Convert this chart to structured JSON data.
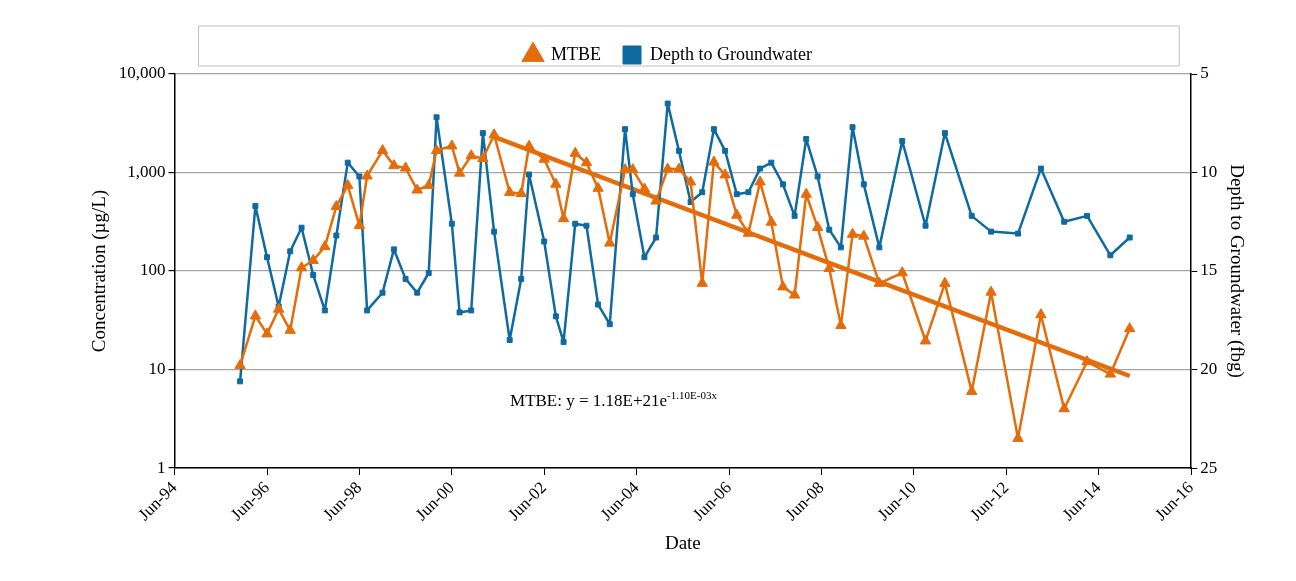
{
  "chart_data": {
    "type": "line",
    "xlabel": "Date",
    "ylabel": "Concentration (µg/L)",
    "y2label": "Depth to Groundwater (fbg)",
    "x": [
      "1995-11",
      "1996-03",
      "1996-06",
      "1996-09",
      "1996-12",
      "1997-03",
      "1997-06",
      "1997-09",
      "1997-12",
      "1998-03",
      "1998-06",
      "1998-08",
      "1998-12",
      "1999-03",
      "1999-06",
      "1999-09",
      "1999-12",
      "2000-02",
      "2000-06",
      "2000-08",
      "2000-11",
      "2001-02",
      "2001-05",
      "2001-09",
      "2001-12",
      "2002-02",
      "2002-06",
      "2002-09",
      "2002-11",
      "2003-02",
      "2003-05",
      "2003-08",
      "2003-11",
      "2004-03",
      "2004-05",
      "2004-08",
      "2004-11",
      "2005-02",
      "2005-05",
      "2005-08",
      "2005-11",
      "2006-02",
      "2006-05",
      "2006-08",
      "2006-11",
      "2007-02",
      "2007-05",
      "2007-08",
      "2007-11",
      "2008-02",
      "2008-05",
      "2008-08",
      "2008-11",
      "2009-02",
      "2009-05",
      "2009-09",
      "2010-03",
      "2010-09",
      "2011-02",
      "2011-09",
      "2012-02",
      "2012-09",
      "2013-03",
      "2013-09",
      "2014-03",
      "2014-09",
      "2015-02"
    ],
    "series": [
      {
        "name": "MTBE",
        "color": "#e46c0a",
        "marker": "triangle",
        "values": [
          11,
          35,
          23,
          41,
          25,
          108,
          128,
          177,
          453,
          740,
          289,
          922,
          1671,
          1175,
          1110,
          664,
          740,
          1671,
          1860,
          985,
          1480,
          1385,
          2415,
          628,
          612,
          1845,
          1365,
          760,
          340,
          1566,
          1256,
          692,
          192,
          1069,
          1069,
          681,
          513,
          1085,
          1085,
          802,
          75,
          1277,
          946,
          369,
          242,
          802,
          313,
          69,
          57,
          602,
          277,
          106,
          28,
          236,
          226,
          75,
          96,
          19.5,
          75,
          6,
          61,
          2,
          36,
          4,
          12,
          9,
          26
        ]
      },
      {
        "name": "Depth to Groundwater",
        "color": "#0e6aa0",
        "marker": "square",
        "axis": "y2",
        "values": [
          20.6,
          11.7,
          14.3,
          16.8,
          14.0,
          12.8,
          15.2,
          17.0,
          13.2,
          9.5,
          10.2,
          17.0,
          16.1,
          13.9,
          15.4,
          16.1,
          15.1,
          7.2,
          12.6,
          17.1,
          17.0,
          8.0,
          13.0,
          18.5,
          15.4,
          10.1,
          13.5,
          17.3,
          18.6,
          12.6,
          12.7,
          16.7,
          17.7,
          7.8,
          11.1,
          14.3,
          13.3,
          6.5,
          8.9,
          11.5,
          11.0,
          7.8,
          8.9,
          11.1,
          11.0,
          9.8,
          9.5,
          10.6,
          12.2,
          8.3,
          10.2,
          12.9,
          13.8,
          7.7,
          10.6,
          13.8,
          8.4,
          12.7,
          8.0,
          12.2,
          13.0,
          13.1,
          9.8,
          12.5,
          12.2,
          14.2,
          13.3
        ]
      },
      {
        "type": "line",
        "color": "#e46c0a",
        "marker": "none",
        "x": [
          "2001-05",
          "2015-02"
        ],
        "values": [
          2300,
          8.6
        ]
      }
    ],
    "xlim": [
      "1994-06",
      "2016-06"
    ],
    "xticks": [
      {
        "value": "1994-06",
        "label": "Jun-94"
      },
      {
        "value": "1996-06",
        "label": "Jun-96"
      },
      {
        "value": "1998-06",
        "label": "Jun-98"
      },
      {
        "value": "2000-06",
        "label": "Jun-00"
      },
      {
        "value": "2002-06",
        "label": "Jun-02"
      },
      {
        "value": "2004-06",
        "label": "Jun-04"
      },
      {
        "value": "2006-06",
        "label": "Jun-06"
      },
      {
        "value": "2008-06",
        "label": "Jun-08"
      },
      {
        "value": "2010-06",
        "label": "Jun-10"
      },
      {
        "value": "2012-06",
        "label": "Jun-12"
      },
      {
        "value": "2014-06",
        "label": "Jun-14"
      },
      {
        "value": "2016-06",
        "label": "Jun-16"
      }
    ],
    "log": "y",
    "ylim": [
      1,
      10000
    ],
    "yticks": [
      1,
      10,
      100,
      {
        "value": 1000,
        "label": "1,000"
      },
      {
        "value": 10000,
        "label": "10,000"
      }
    ],
    "y2lim": [
      25,
      5
    ],
    "y2ticks": [
      5,
      10,
      15,
      20,
      25
    ],
    "grid": "y",
    "legend": "top",
    "annotations": [
      "MTBE: y = 1.18E+21e$^{-1.10E-03x}$"
    ]
  }
}
